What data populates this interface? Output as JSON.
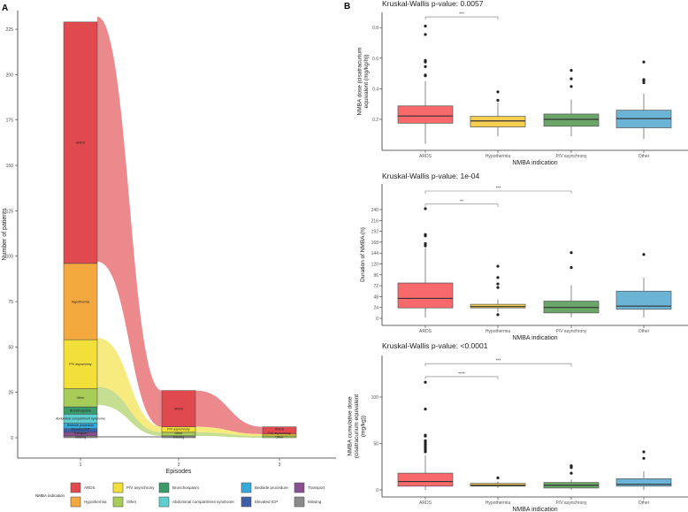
{
  "panel_labels": {
    "a": "A",
    "b": "B"
  },
  "chart_data": [
    {
      "type": "alluvial",
      "xlabel": "Episodes",
      "ylabel": "Number of patients",
      "ylim": [
        0,
        232
      ],
      "yticks": [
        0,
        25,
        50,
        75,
        100,
        125,
        150,
        175,
        200,
        225
      ],
      "episodes": [
        "1",
        "2",
        "3"
      ],
      "legend_title": "NMBA indication",
      "legend_position": "bottom",
      "categories": [
        {
          "name": "ARDS",
          "color": "#e04a4f"
        },
        {
          "name": "Hypothermia",
          "color": "#f4a93f"
        },
        {
          "name": "P/V asynchrony",
          "color": "#f2df3a"
        },
        {
          "name": "Other",
          "color": "#a8cc58"
        },
        {
          "name": "Bronchospasm",
          "color": "#3a9a6a"
        },
        {
          "name": "Abdominal compartment syndrome",
          "color": "#5ecfcf"
        },
        {
          "name": "Bedside procedure",
          "color": "#35a8dc"
        },
        {
          "name": "Elevated ICP",
          "color": "#3d5fa8"
        },
        {
          "name": "Transport",
          "color": "#8a4f8f"
        },
        {
          "name": "Missing",
          "color": "#8a8a8a"
        }
      ],
      "strata": [
        {
          "episode": "1",
          "values": {
            "ARDS": 133,
            "Hypothermia": 42,
            "P/V asynchrony": 27,
            "Other": 10,
            "Bronchospasm": 4,
            "Abdominal compartment syndrome": 5,
            "Bedside procedure": 3,
            "Elevated ICP": 2,
            "Transport": 2,
            "Missing": 1
          }
        },
        {
          "episode": "2",
          "values": {
            "ARDS": 20,
            "P/V asynchrony": 3,
            "Other": 2,
            "Missing": 1
          }
        },
        {
          "episode": "3",
          "values": {
            "ARDS": 4,
            "P/V asynchrony": 1,
            "Other": 1
          }
        }
      ],
      "order_bottom_to_top": [
        "Missing",
        "Transport",
        "Elevated ICP",
        "Bedside procedure",
        "Abdominal compartment syndrome",
        "Bronchospasm",
        "Other",
        "P/V asynchrony",
        "Hypothermia",
        "ARDS"
      ],
      "flows": [
        {
          "category": "ARDS",
          "from": "1",
          "to": "2",
          "source": [
            97,
            232
          ],
          "target": [
            6,
            26
          ]
        },
        {
          "category": "P/V asynchrony",
          "from": "1",
          "to": "2",
          "source": [
            28,
            55
          ],
          "target": [
            3,
            6
          ]
        },
        {
          "category": "Other",
          "from": "1",
          "to": "2",
          "source": [
            18,
            28
          ],
          "target": [
            1,
            3
          ]
        },
        {
          "category": "Missing",
          "from": "1",
          "to": "2",
          "source": [
            0,
            1
          ],
          "target": [
            0,
            1
          ]
        },
        {
          "category": "ARDS",
          "from": "2",
          "to": "3",
          "source": [
            6,
            26
          ],
          "target": [
            2,
            6
          ]
        },
        {
          "category": "P/V asynchrony",
          "from": "2",
          "to": "3",
          "source": [
            3,
            6
          ],
          "target": [
            1,
            2
          ]
        },
        {
          "category": "Other",
          "from": "2",
          "to": "3",
          "source": [
            1,
            3
          ],
          "target": [
            0,
            1
          ]
        }
      ]
    },
    {
      "type": "boxplot",
      "title": "Kruskal-Wallis p-value: 0.0057",
      "xlabel": "NMBA indication",
      "ylabel": [
        "NMBA dose (cisatracurium",
        "equivalent (mg/kg/h))"
      ],
      "yticks": [
        0.2,
        0.4,
        0.6,
        0.8
      ],
      "ytick_labels": [
        "0.2",
        "0.4",
        "0.6",
        "0.8"
      ],
      "categories": [
        "ARDS",
        "Hypothermia",
        "P/V asynchrony",
        "Other"
      ],
      "colors": [
        "#f8696b",
        "#f5cf4f",
        "#6aa56a",
        "#6cb4d6"
      ],
      "boxes": [
        {
          "q1": 0.175,
          "median": 0.222,
          "q3": 0.288,
          "whisker_low": 0.04,
          "whisker_high": 0.45,
          "outliers": [
            0.485,
            0.49,
            0.545,
            0.575,
            0.585,
            0.755,
            0.81
          ]
        },
        {
          "q1": 0.15,
          "median": 0.19,
          "q3": 0.22,
          "whisker_low": 0.09,
          "whisker_high": 0.31,
          "outliers": [
            0.325,
            0.38
          ]
        },
        {
          "q1": 0.155,
          "median": 0.2,
          "q3": 0.235,
          "whisker_low": 0.09,
          "whisker_high": 0.33,
          "outliers": [
            0.415,
            0.465,
            0.52
          ]
        },
        {
          "q1": 0.145,
          "median": 0.205,
          "q3": 0.26,
          "whisker_low": 0.07,
          "whisker_high": 0.37,
          "outliers": [
            0.44,
            0.455,
            0.46,
            0.575
          ]
        }
      ],
      "brackets": [
        {
          "from": "ARDS",
          "to": "Hypothermia",
          "label": "***",
          "y": 0.87
        }
      ]
    },
    {
      "type": "boxplot",
      "title": "Kruskal-Wallis p-value: 1e-04",
      "xlabel": "NMBA indication",
      "ylabel": [
        "Duration of NMBA (h)"
      ],
      "yticks": [
        0,
        24,
        48,
        72,
        96,
        120,
        144,
        168,
        192,
        216,
        240
      ],
      "ytick_labels": [
        "0",
        "24",
        "48",
        "72",
        "96",
        "120",
        "144",
        "168",
        "192",
        "216",
        "240"
      ],
      "categories": [
        "ARDS",
        "Hypothermia",
        "P/V asynchrony",
        "Other"
      ],
      "colors": [
        "#f8696b",
        "#f5cf4f",
        "#6aa56a",
        "#6cb4d6"
      ],
      "boxes": [
        {
          "q1": 23,
          "median": 44,
          "q3": 78,
          "whisker_low": 2,
          "whisker_high": 155,
          "outliers": [
            160,
            165,
            182,
            185,
            242
          ]
        },
        {
          "q1": 23,
          "median": 26,
          "q3": 31,
          "whisker_low": 14,
          "whisker_high": 42,
          "outliers": [
            8,
            68,
            76,
            90,
            115
          ]
        },
        {
          "q1": 12,
          "median": 24,
          "q3": 38,
          "whisker_low": 2,
          "whisker_high": 73,
          "outliers": [
            112,
            145
          ]
        },
        {
          "q1": 20,
          "median": 27,
          "q3": 60,
          "whisker_low": 2,
          "whisker_high": 90,
          "outliers": [
            141
          ]
        }
      ],
      "brackets": [
        {
          "from": "ARDS",
          "to": "Hypothermia",
          "label": "**",
          "y": 252
        },
        {
          "from": "ARDS",
          "to": "P/V asynchrony",
          "label": "***",
          "y": 281
        }
      ]
    },
    {
      "type": "boxplot",
      "title": "Kruskal-Wallis p-value: <0.0001",
      "xlabel": "NMBA indication",
      "ylabel": [
        "NMBA cumulative dose",
        "(cisatracurium equivalent",
        "(mg/kg))"
      ],
      "yticks": [
        0,
        50,
        100
      ],
      "ytick_labels": [
        "0",
        "50",
        "100"
      ],
      "categories": [
        "ARDS",
        "Hypothermia",
        "P/V asynchrony",
        "Other"
      ],
      "colors": [
        "#f8696b",
        "#f5cf4f",
        "#6aa56a",
        "#6cb4d6"
      ],
      "boxes": [
        {
          "q1": 4,
          "median": 9,
          "q3": 18,
          "whisker_low": 0,
          "whisker_high": 37,
          "outliers": [
            41,
            43,
            45,
            47,
            49,
            51,
            53,
            58,
            59,
            87,
            116
          ]
        },
        {
          "q1": 4,
          "median": 5,
          "q3": 7,
          "whisker_low": 2,
          "whisker_high": 9,
          "outliers": [
            13
          ]
        },
        {
          "q1": 2,
          "median": 5,
          "q3": 8,
          "whisker_low": 0,
          "whisker_high": 11,
          "outliers": [
            18,
            24,
            25,
            26
          ]
        },
        {
          "q1": 4,
          "median": 6,
          "q3": 12,
          "whisker_low": 0,
          "whisker_high": 20,
          "outliers": [
            34,
            41
          ]
        }
      ],
      "brackets": [
        {
          "from": "ARDS",
          "to": "Hypothermia",
          "label": "****",
          "y": 122
        },
        {
          "from": "ARDS",
          "to": "P/V asynchrony",
          "label": "***",
          "y": 136
        }
      ]
    }
  ]
}
